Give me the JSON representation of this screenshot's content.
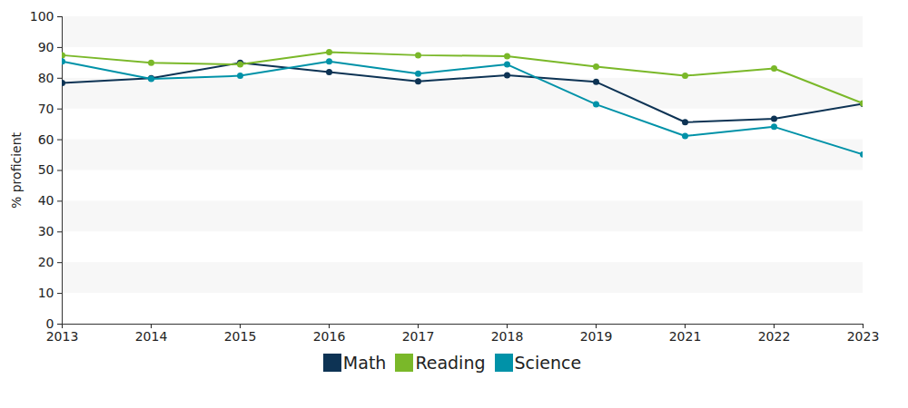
{
  "chart_data": {
    "type": "line",
    "y_label": "% proficient",
    "categories": [
      "2013",
      "2014",
      "2015",
      "2016",
      "2017",
      "2018",
      "2019",
      "2021",
      "2022",
      "2023"
    ],
    "series": [
      {
        "name": "Math",
        "color": "#0d3354",
        "values": [
          78.5,
          80,
          85,
          82,
          79,
          81,
          78.8,
          65.7,
          66.8,
          71.7
        ]
      },
      {
        "name": "Reading",
        "color": "#7ab829",
        "values": [
          87.5,
          85,
          84.5,
          88.5,
          87.5,
          87.2,
          83.8,
          80.8,
          83.2,
          71.8
        ]
      },
      {
        "name": "Science",
        "color": "#0092a8",
        "values": [
          85.5,
          79.8,
          80.8,
          85.5,
          81.5,
          84.5,
          71.5,
          61.2,
          64.2,
          55.2
        ]
      }
    ],
    "ylim": [
      0,
      100
    ],
    "yticks": [
      0,
      10,
      20,
      30,
      40,
      50,
      60,
      70,
      80,
      90,
      100
    ],
    "grid": true,
    "marker": "circle",
    "line_style": "solid",
    "legend": "bottom"
  }
}
